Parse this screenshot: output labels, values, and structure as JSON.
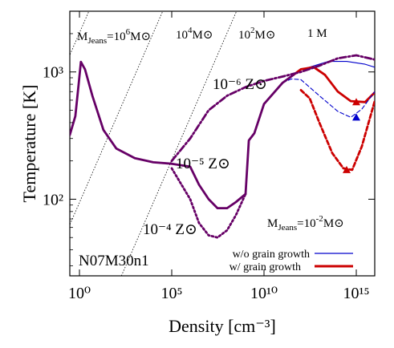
{
  "chart_data": {
    "type": "line",
    "xlabel": "Density [cm⁻³]",
    "ylabel": "Temperature [K]",
    "x_scale": "log",
    "y_scale": "log",
    "xlim": [
      0.3,
      1e+16
    ],
    "ylim": [
      25,
      3000
    ],
    "xticks": [
      {
        "value": 1,
        "label": "10⁰"
      },
      {
        "value": 100000,
        "label": "10⁵"
      },
      {
        "value": 10000000000,
        "label": "10¹⁰"
      },
      {
        "value": 1000000000000000.0,
        "label": "10¹⁵"
      }
    ],
    "yticks": [
      {
        "value": 100,
        "label": "10²"
      },
      {
        "value": 1000,
        "label": "10³"
      }
    ],
    "label_model": "N07M30n1",
    "annotations": {
      "z6": "10⁻⁶ Z⊙",
      "z5": "10⁻⁵ Z⊙",
      "z4": "10⁻⁴ Z⊙"
    },
    "jeans_lines": [
      {
        "label": "M_Jeans=10⁶M⊙",
        "mass": 1000000
      },
      {
        "label": "10⁴M⊙",
        "mass": 10000
      },
      {
        "label": "10²M⊙",
        "mass": 100
      },
      {
        "label": "1 M⊙",
        "mass": 1
      },
      {
        "label": "M_Jeans=10⁻²M⊙",
        "mass": 0.01
      }
    ],
    "jeans_text": {
      "top_prefix": "M",
      "top_sub": "Jeans",
      "top_rest": "=10",
      "top_exp": "6",
      "m4": "10",
      "m4_exp": "4",
      "m2": "10",
      "m2_exp": "2",
      "m0": "1 M",
      "bottom_prefix": "M",
      "bottom_sub": "Jeans",
      "bottom_rest": "=10",
      "bottom_exp": "-2",
      "msun": "M⊙"
    },
    "legend": [
      {
        "label": "w/o grain growth",
        "color": "#0000cc"
      },
      {
        "label": "w/ grain growth",
        "color": "#cc0000"
      }
    ],
    "series": [
      {
        "metallicity": "1e-6",
        "grain_growth": false,
        "color": "#0000cc",
        "style": "solid",
        "points": [
          [
            400000000000.0,
            950
          ],
          [
            1000000000000.0,
            1040
          ],
          [
            30000000000000.0,
            1210
          ],
          [
            300000000000000.0,
            1210
          ],
          [
            3000000000000000.0,
            1150
          ],
          [
            1e+16,
            1090
          ]
        ]
      },
      {
        "metallicity": "1e-6",
        "grain_growth": true,
        "color": "#cc0000",
        "style": "solid",
        "points": [
          [
            400000000000.0,
            950
          ],
          [
            1000000000000.0,
            1050
          ],
          [
            5000000000000.0,
            1090
          ],
          [
            20000000000000.0,
            950
          ],
          [
            100000000000000.0,
            700
          ],
          [
            500000000000000.0,
            590
          ],
          [
            3000000000000000.0,
            580
          ],
          [
            1e+16,
            690
          ]
        ]
      },
      {
        "metallicity": "1e-5",
        "grain_growth": false,
        "color": "#0000cc",
        "style": "dashed",
        "points": [
          [
            100000000000.0,
            820
          ],
          [
            300000000000.0,
            880
          ],
          [
            1000000000000.0,
            870
          ],
          [
            10000000000000.0,
            650
          ],
          [
            100000000000000.0,
            490
          ],
          [
            500000000000000.0,
            440
          ],
          [
            2000000000000000.0,
            510
          ],
          [
            1e+16,
            700
          ]
        ]
      },
      {
        "metallicity": "1e-5",
        "grain_growth": true,
        "color": "#cc0000",
        "style": "dashed",
        "points": [
          [
            1000000000000.0,
            720
          ],
          [
            3000000000000.0,
            620
          ],
          [
            10000000000000.0,
            400
          ],
          [
            50000000000000.0,
            230
          ],
          [
            200000000000000.0,
            175
          ],
          [
            600000000000000.0,
            170
          ],
          [
            2000000000000000.0,
            260
          ],
          [
            1e+16,
            590
          ]
        ]
      },
      {
        "metallicity": "Z_common",
        "grain_growth": "both",
        "color": "#660066",
        "style": "solid",
        "points": [
          [
            0.3,
            320
          ],
          [
            0.6,
            450
          ],
          [
            0.9,
            800
          ],
          [
            1.2,
            1200
          ],
          [
            2,
            1050
          ],
          [
            5,
            650
          ],
          [
            20,
            350
          ],
          [
            100,
            250
          ],
          [
            1000,
            210
          ],
          [
            10000,
            195
          ],
          [
            100000,
            190
          ]
        ]
      },
      {
        "metallicity": "1e-4",
        "grain_growth": "both",
        "color": "#660066",
        "style": "solid",
        "points": [
          [
            100000,
            190
          ],
          [
            1000000,
            180
          ],
          [
            3000000,
            130
          ],
          [
            10000000.0,
            100
          ],
          [
            30000000.0,
            85
          ],
          [
            100000000.0,
            85
          ],
          [
            300000000.0,
            95
          ],
          [
            1000000000.0,
            110
          ]
        ]
      },
      {
        "metallicity": "1e-4 continued",
        "grain_growth": "both",
        "color": "#660066",
        "style": "dotted",
        "points": [
          [
            100000,
            175
          ],
          [
            1000000,
            100
          ],
          [
            3000000,
            65
          ],
          [
            10000000.0,
            52
          ],
          [
            30000000.0,
            50
          ],
          [
            100000000.0,
            57
          ],
          [
            300000000.0,
            75
          ],
          [
            1000000000.0,
            110
          ]
        ]
      },
      {
        "metallicity": "1e-6 tail",
        "grain_growth": "both",
        "color": "#660066",
        "style": "dashdot",
        "points": [
          [
            100000,
            200
          ],
          [
            1000000,
            300
          ],
          [
            10000000.0,
            500
          ],
          [
            100000000.0,
            650
          ],
          [
            1000000000.0,
            760
          ],
          [
            10000000000.0,
            850
          ],
          [
            100000000000.0,
            920
          ],
          [
            1000000000000.0,
            1000
          ],
          [
            10000000000000.0,
            1120
          ],
          [
            100000000000000.0,
            1280
          ],
          [
            1000000000000000.0,
            1350
          ],
          [
            1e+16,
            1250
          ]
        ]
      },
      {
        "metallicity": "1e-5 rise",
        "grain_growth": "both",
        "color": "#660066",
        "style": "solid",
        "points": [
          [
            1000000000.0,
            110
          ],
          [
            1500000000.0,
            290
          ],
          [
            3000000000.0,
            330
          ],
          [
            10000000000.0,
            560
          ],
          [
            100000000000.0,
            820
          ],
          [
            400000000000.0,
            950
          ]
        ]
      }
    ],
    "markers": [
      {
        "x": 1000000000000000.0,
        "y": 580,
        "color": "#cc0000"
      },
      {
        "x": 1000000000000000.0,
        "y": 440,
        "color": "#0000cc"
      },
      {
        "x": 300000000000000.0,
        "y": 170,
        "color": "#cc0000"
      }
    ]
  }
}
